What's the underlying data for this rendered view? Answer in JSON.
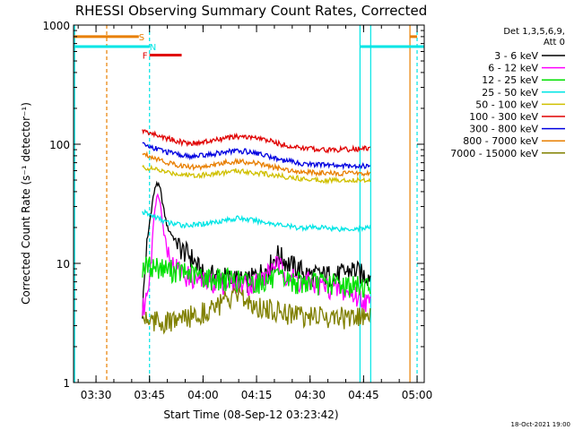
{
  "chart_data": {
    "type": "line",
    "title": "RHESSI Observing Summary Count Rates, Corrected",
    "xlabel": "Start Time (08-Sep-12 03:23:42)",
    "ylabel": "Corrected Count Rate (s⁻¹ detector⁻¹)",
    "ylim": [
      1,
      1000
    ],
    "y_scale": "log",
    "xlim": [
      "03:23:42",
      "05:02:00"
    ],
    "x_ticks": [
      "03:30",
      "03:45",
      "04:00",
      "04:15",
      "04:30",
      "04:45",
      "05:00"
    ],
    "y_ticks": [
      "1",
      "10",
      "100",
      "1000"
    ],
    "legend": {
      "header": [
        "Det 1,3,5,6,9,",
        "Att 0"
      ],
      "placement": "right-outside"
    },
    "timestamp": "18-Oct-2021 19:00",
    "flags": [
      {
        "label": "S",
        "color": "#e87f00",
        "x_start": "03:23:42",
        "x_end": "03:42",
        "label_at": "03:42",
        "level": 800
      },
      {
        "label": "N",
        "color": "#00e5e5",
        "x_start": "03:23:42",
        "x_end": "03:45",
        "label_at": "03:45",
        "level": 660
      },
      {
        "label": "F",
        "color": "#e00000",
        "x_start": "03:45",
        "x_end": "03:54",
        "label_at": "03:43",
        "level": 560
      },
      {
        "label": "",
        "color": "#00e5e5",
        "x_start": "04:44",
        "x_end": "05:02",
        "level": 660
      },
      {
        "label": "",
        "color": "#e87f00",
        "x_start": "04:58",
        "x_end": "05:00",
        "level": 800
      }
    ],
    "vertical_lines": [
      {
        "x": "03:24",
        "color": "#00e5e5",
        "style": "solid"
      },
      {
        "x": "03:33",
        "color": "#e87f00",
        "style": "dashed"
      },
      {
        "x": "03:45",
        "color": "#00e5e5",
        "style": "dashed"
      },
      {
        "x": "04:44",
        "color": "#00e5e5",
        "style": "solid"
      },
      {
        "x": "04:47",
        "color": "#00e5e5",
        "style": "solid"
      },
      {
        "x": "04:58",
        "color": "#e87f00",
        "style": "solid"
      },
      {
        "x": "05:00",
        "color": "#00e5e5",
        "style": "dashed"
      }
    ],
    "series": [
      {
        "name": "3 - 6 keV",
        "color": "#000000",
        "x": [
          "03:43",
          "03:44",
          "03:45",
          "03:46",
          "03:47",
          "03:48",
          "03:49",
          "03:50",
          "03:52",
          "03:54",
          "03:56",
          "03:58",
          "04:00",
          "04:04",
          "04:08",
          "04:12",
          "04:15",
          "04:18",
          "04:21",
          "04:24",
          "04:27",
          "04:30",
          "04:34",
          "04:38",
          "04:42",
          "04:45",
          "04:47"
        ],
        "values": [
          4,
          12,
          22,
          36,
          48,
          42,
          28,
          20,
          16,
          13,
          12,
          10,
          8,
          8,
          7.5,
          7,
          8,
          9,
          12,
          10,
          9,
          8,
          8,
          8,
          9,
          8,
          8
        ]
      },
      {
        "name": "6 - 12 keV",
        "color": "#ff00ff",
        "x": [
          "03:43",
          "03:44",
          "03:45",
          "03:46",
          "03:47",
          "03:48",
          "03:49",
          "03:50",
          "03:51",
          "03:53",
          "03:55",
          "03:58",
          "04:00",
          "04:04",
          "04:08",
          "04:12",
          "04:15",
          "04:18",
          "04:20",
          "04:22",
          "04:24",
          "04:27",
          "04:30",
          "04:34",
          "04:38",
          "04:42",
          "04:45",
          "04:47"
        ],
        "values": [
          4,
          5,
          8,
          20,
          38,
          34,
          18,
          14,
          10,
          9,
          8,
          7.5,
          7,
          7,
          7,
          6.8,
          7,
          8,
          10,
          9,
          8,
          7,
          7,
          6.5,
          6,
          5.5,
          5,
          4.5
        ]
      },
      {
        "name": "12 - 25 keV",
        "color": "#00e000",
        "x": [
          "03:43",
          "03:47",
          "03:50",
          "03:54",
          "03:58",
          "04:02",
          "04:06",
          "04:10",
          "04:14",
          "04:18",
          "04:22",
          "04:26",
          "04:30",
          "04:34",
          "04:38",
          "04:42",
          "04:47"
        ],
        "values": [
          9.5,
          9.5,
          9,
          8.5,
          8,
          7.5,
          7.5,
          7.2,
          7,
          7.2,
          7.5,
          7,
          7,
          6.8,
          6.8,
          6.5,
          6.5
        ]
      },
      {
        "name": "25 - 50 keV",
        "color": "#00e5e5",
        "x": [
          "03:43",
          "03:46",
          "03:50",
          "03:54",
          "03:58",
          "04:02",
          "04:06",
          "04:10",
          "04:14",
          "04:18",
          "04:22",
          "04:26",
          "04:30",
          "04:34",
          "04:38",
          "04:42",
          "04:47"
        ],
        "values": [
          27,
          25,
          22,
          21,
          21,
          22,
          23,
          24,
          23,
          22,
          21,
          20,
          20,
          20,
          19.5,
          19.5,
          20
        ]
      },
      {
        "name": "50 - 100 keV",
        "color": "#d0c000",
        "x": [
          "03:43",
          "03:46",
          "03:50",
          "03:54",
          "03:58",
          "04:02",
          "04:06",
          "04:10",
          "04:14",
          "04:18",
          "04:22",
          "04:26",
          "04:30",
          "04:34",
          "04:38",
          "04:42",
          "04:47"
        ],
        "values": [
          64,
          62,
          58,
          56,
          55,
          56,
          58,
          60,
          58,
          56,
          54,
          52,
          51,
          50,
          50,
          50,
          50
        ]
      },
      {
        "name": "100 - 300 keV",
        "color": "#e00000",
        "x": [
          "03:43",
          "03:46",
          "03:50",
          "03:54",
          "03:58",
          "04:02",
          "04:06",
          "04:10",
          "04:14",
          "04:18",
          "04:22",
          "04:26",
          "04:30",
          "04:34",
          "04:38",
          "04:42",
          "04:45",
          "04:47"
        ],
        "values": [
          130,
          122,
          112,
          104,
          102,
          106,
          112,
          116,
          114,
          108,
          100,
          94,
          92,
          90,
          90,
          91,
          92,
          92
        ]
      },
      {
        "name": "300 - 800 keV",
        "color": "#0000e0",
        "x": [
          "03:43",
          "03:46",
          "03:50",
          "03:54",
          "03:58",
          "04:02",
          "04:06",
          "04:10",
          "04:14",
          "04:18",
          "04:22",
          "04:26",
          "04:30",
          "04:34",
          "04:38",
          "04:42",
          "04:47"
        ],
        "values": [
          100,
          94,
          86,
          80,
          79,
          82,
          86,
          88,
          86,
          80,
          74,
          70,
          68,
          67,
          66,
          66,
          66
        ]
      },
      {
        "name": "800 - 7000 keV",
        "color": "#e87f00",
        "x": [
          "03:43",
          "03:46",
          "03:50",
          "03:54",
          "03:58",
          "04:02",
          "04:06",
          "04:10",
          "04:14",
          "04:18",
          "04:22",
          "04:26",
          "04:30",
          "04:34",
          "04:38",
          "04:42",
          "04:47"
        ],
        "values": [
          84,
          78,
          70,
          66,
          64,
          66,
          70,
          72,
          70,
          66,
          62,
          60,
          58,
          57,
          57,
          57,
          57
        ]
      },
      {
        "name": "7000 - 15000 keV",
        "color": "#808000",
        "x": [
          "03:43",
          "03:46",
          "03:50",
          "03:54",
          "03:58",
          "04:02",
          "04:06",
          "04:10",
          "04:14",
          "04:18",
          "04:22",
          "04:26",
          "04:30",
          "04:34",
          "04:38",
          "04:42",
          "04:47"
        ],
        "values": [
          3.6,
          3.4,
          3.2,
          3.4,
          3.8,
          4.2,
          4.8,
          5.2,
          4.6,
          4.2,
          4,
          3.8,
          3.6,
          3.6,
          3.6,
          3.5,
          3.5
        ]
      }
    ]
  }
}
